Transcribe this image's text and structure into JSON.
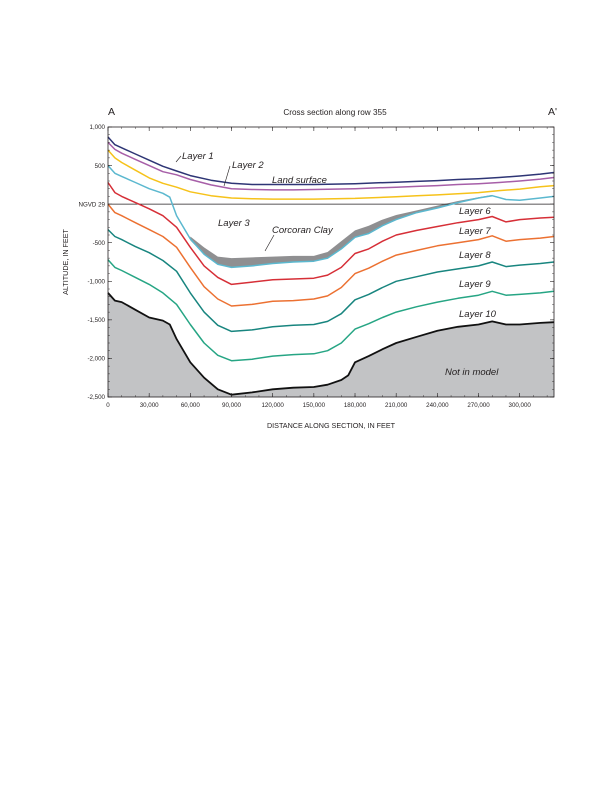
{
  "chart_data": {
    "type": "line",
    "title": "Cross section along row 355",
    "corner_left": "A",
    "corner_right": "A'",
    "xlabel": "DISTANCE ALONG SECTION, IN FEET",
    "ylabel": "ALTITUDE, IN FEET",
    "xlim": [
      0,
      325000
    ],
    "ylim": [
      -2500,
      1000
    ],
    "x_ticks": [
      {
        "value": 0,
        "label": "0"
      },
      {
        "value": 30000,
        "label": "30,000"
      },
      {
        "value": 60000,
        "label": "60,000"
      },
      {
        "value": 90000,
        "label": "90,000"
      },
      {
        "value": 120000,
        "label": "120,000"
      },
      {
        "value": 150000,
        "label": "150,000"
      },
      {
        "value": 180000,
        "label": "180,000"
      },
      {
        "value": 210000,
        "label": "210,000"
      },
      {
        "value": 240000,
        "label": "240,000"
      },
      {
        "value": 270000,
        "label": "270,000"
      },
      {
        "value": 300000,
        "label": "300,000"
      }
    ],
    "y_ticks": [
      {
        "value": 1000,
        "label": "1,000"
      },
      {
        "value": 500,
        "label": "500"
      },
      {
        "value": 0,
        "label": "NGVD 29"
      },
      {
        "value": -500,
        "label": "-500"
      },
      {
        "value": -1000,
        "label": "-1,000"
      },
      {
        "value": -1500,
        "label": "-1,500"
      },
      {
        "value": -2000,
        "label": "-2,000"
      },
      {
        "value": -2500,
        "label": "-2,500"
      }
    ],
    "datum": 0,
    "colors": {
      "land_surface": "#2e3575",
      "layer1_bottom": "#a75fa8",
      "layer2_bottom": "#f6c21a",
      "layer3_bottom": "#5bb8cf",
      "layer6_bottom": "#d62f37",
      "layer7_bottom": "#ec7132",
      "layer8_bottom": "#18857f",
      "layer9_bottom": "#26a584",
      "layer10_bottom": "#111111",
      "corcoran_clay": "#8f8f91",
      "not_in_model": "#c2c3c5",
      "datum": "#231f20"
    },
    "series": [
      {
        "key": "land_surface",
        "color": "#2e3575",
        "x": [
          0,
          5000,
          10000,
          20000,
          30000,
          40000,
          50000,
          60000,
          75000,
          90000,
          105000,
          120000,
          135000,
          150000,
          165000,
          180000,
          195000,
          210000,
          225000,
          240000,
          255000,
          270000,
          285000,
          300000,
          315000,
          325000
        ],
        "y": [
          870,
          770,
          730,
          650,
          570,
          490,
          430,
          370,
          310,
          270,
          255,
          255,
          255,
          255,
          260,
          265,
          275,
          285,
          295,
          305,
          320,
          330,
          345,
          365,
          390,
          410
        ]
      },
      {
        "key": "layer1_bottom",
        "color": "#a75fa8",
        "x": [
          0,
          5000,
          10000,
          20000,
          30000,
          40000,
          50000,
          60000,
          75000,
          90000,
          105000,
          120000,
          135000,
          150000,
          165000,
          180000,
          195000,
          210000,
          225000,
          240000,
          255000,
          270000,
          285000,
          300000,
          315000,
          325000
        ],
        "y": [
          800,
          710,
          660,
          580,
          500,
          420,
          380,
          320,
          250,
          200,
          190,
          185,
          185,
          190,
          195,
          200,
          210,
          220,
          230,
          240,
          255,
          265,
          280,
          300,
          325,
          345
        ]
      },
      {
        "key": "layer2_bottom",
        "color": "#f6c21a",
        "x": [
          0,
          5000,
          10000,
          20000,
          30000,
          40000,
          50000,
          60000,
          75000,
          90000,
          105000,
          120000,
          135000,
          150000,
          165000,
          180000,
          195000,
          210000,
          225000,
          240000,
          255000,
          270000,
          285000,
          300000,
          315000,
          325000
        ],
        "y": [
          700,
          600,
          540,
          440,
          340,
          270,
          220,
          160,
          110,
          80,
          70,
          65,
          65,
          65,
          70,
          75,
          85,
          95,
          110,
          120,
          135,
          150,
          175,
          195,
          225,
          240
        ]
      },
      {
        "key": "layer3_bottom",
        "color": "#5bb8cf",
        "x": [
          0,
          5000,
          10000,
          20000,
          30000,
          40000,
          45000,
          50000,
          60000,
          70000,
          80000,
          90000,
          105000,
          120000,
          135000,
          150000,
          160000,
          170000,
          180000,
          190000,
          200000,
          210000,
          225000,
          240000,
          255000,
          270000,
          280000,
          290000,
          300000,
          315000,
          325000
        ],
        "y": [
          500,
          400,
          360,
          280,
          200,
          140,
          90,
          -150,
          -450,
          -650,
          -780,
          -820,
          -800,
          -770,
          -750,
          -740,
          -700,
          -580,
          -430,
          -380,
          -280,
          -200,
          -110,
          -50,
          20,
          80,
          110,
          60,
          50,
          80,
          100
        ]
      },
      {
        "key": "layer6_bottom",
        "color": "#d62f37",
        "x": [
          0,
          5000,
          10000,
          20000,
          30000,
          40000,
          50000,
          60000,
          70000,
          80000,
          90000,
          105000,
          120000,
          135000,
          150000,
          160000,
          170000,
          180000,
          190000,
          200000,
          210000,
          225000,
          240000,
          255000,
          270000,
          280000,
          290000,
          300000,
          315000,
          325000
        ],
        "y": [
          280,
          150,
          100,
          20,
          -60,
          -150,
          -300,
          -560,
          -800,
          -950,
          -1040,
          -1010,
          -980,
          -970,
          -960,
          -920,
          -820,
          -640,
          -580,
          -480,
          -400,
          -340,
          -290,
          -240,
          -200,
          -160,
          -230,
          -200,
          -180,
          -170
        ]
      },
      {
        "key": "layer7_bottom",
        "color": "#ec7132",
        "x": [
          0,
          5000,
          10000,
          20000,
          30000,
          40000,
          50000,
          60000,
          70000,
          80000,
          90000,
          105000,
          120000,
          135000,
          150000,
          160000,
          170000,
          180000,
          190000,
          200000,
          210000,
          225000,
          240000,
          255000,
          270000,
          280000,
          290000,
          300000,
          315000,
          325000
        ],
        "y": [
          0,
          -110,
          -150,
          -240,
          -330,
          -420,
          -560,
          -820,
          -1070,
          -1230,
          -1320,
          -1300,
          -1260,
          -1250,
          -1230,
          -1190,
          -1080,
          -900,
          -830,
          -740,
          -660,
          -600,
          -540,
          -500,
          -460,
          -410,
          -480,
          -460,
          -440,
          -420
        ]
      },
      {
        "key": "layer8_bottom",
        "color": "#18857f",
        "x": [
          0,
          5000,
          10000,
          20000,
          30000,
          40000,
          50000,
          60000,
          70000,
          80000,
          90000,
          105000,
          120000,
          135000,
          150000,
          160000,
          170000,
          180000,
          190000,
          200000,
          210000,
          225000,
          240000,
          255000,
          270000,
          280000,
          290000,
          300000,
          315000,
          325000
        ],
        "y": [
          -330,
          -420,
          -460,
          -550,
          -630,
          -730,
          -870,
          -1150,
          -1400,
          -1570,
          -1650,
          -1630,
          -1590,
          -1570,
          -1560,
          -1520,
          -1420,
          -1240,
          -1170,
          -1080,
          -1000,
          -940,
          -880,
          -840,
          -800,
          -750,
          -810,
          -790,
          -770,
          -750
        ]
      },
      {
        "key": "layer9_bottom",
        "color": "#26a584",
        "x": [
          0,
          5000,
          10000,
          20000,
          30000,
          40000,
          50000,
          60000,
          70000,
          80000,
          90000,
          105000,
          120000,
          135000,
          150000,
          160000,
          170000,
          180000,
          190000,
          200000,
          210000,
          225000,
          240000,
          255000,
          270000,
          280000,
          290000,
          300000,
          315000,
          325000
        ],
        "y": [
          -720,
          -820,
          -860,
          -950,
          -1040,
          -1150,
          -1300,
          -1560,
          -1800,
          -1960,
          -2030,
          -2010,
          -1970,
          -1950,
          -1940,
          -1900,
          -1800,
          -1620,
          -1550,
          -1470,
          -1400,
          -1330,
          -1270,
          -1220,
          -1180,
          -1130,
          -1180,
          -1170,
          -1150,
          -1130
        ]
      },
      {
        "key": "layer10_bottom",
        "color": "#111111",
        "x": [
          0,
          5000,
          10000,
          20000,
          30000,
          40000,
          45000,
          50000,
          60000,
          70000,
          80000,
          90000,
          105000,
          120000,
          135000,
          150000,
          160000,
          170000,
          175000,
          180000,
          190000,
          200000,
          210000,
          225000,
          240000,
          255000,
          270000,
          280000,
          290000,
          300000,
          315000,
          325000
        ],
        "y": [
          -1150,
          -1250,
          -1270,
          -1370,
          -1470,
          -1510,
          -1560,
          -1750,
          -2050,
          -2250,
          -2400,
          -2470,
          -2440,
          -2400,
          -2380,
          -2370,
          -2340,
          -2280,
          -2220,
          -2050,
          -1970,
          -1880,
          -1800,
          -1720,
          -1640,
          -1590,
          -1560,
          -1520,
          -1560,
          -1560,
          -1540,
          -1530
        ]
      }
    ],
    "corcoran_clay": {
      "x": [
        60000,
        70000,
        80000,
        90000,
        105000,
        120000,
        135000,
        150000,
        160000,
        170000,
        180000,
        190000,
        200000,
        210000,
        225000,
        240000,
        255000,
        270000,
        280000
      ],
      "top": [
        -420,
        -560,
        -680,
        -700,
        -690,
        -680,
        -670,
        -670,
        -620,
        -480,
        -340,
        -280,
        -200,
        -140,
        -80,
        -20,
        40,
        90,
        120
      ],
      "bottom": [
        -470,
        -650,
        -780,
        -820,
        -800,
        -770,
        -750,
        -740,
        -700,
        -580,
        -430,
        -380,
        -280,
        -200,
        -110,
        -50,
        20,
        80,
        110
      ]
    },
    "annotations": {
      "layer1": "Layer 1",
      "layer2": "Layer 2",
      "land_surface": "Land surface",
      "layer3": "Layer 3",
      "corcoran_clay": "Corcoran Clay",
      "layer6": "Layer 6",
      "layer7": "Layer 7",
      "layer8": "Layer 8",
      "layer9": "Layer 9",
      "layer10": "Layer 10",
      "not_in_model": "Not in model"
    }
  }
}
